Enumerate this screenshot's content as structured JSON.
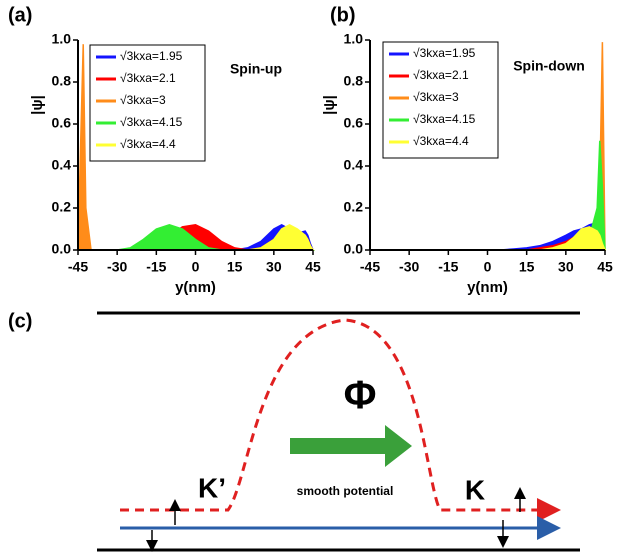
{
  "chart_data": [
    {
      "type": "area",
      "panel_label": "(a)",
      "annotation": "Spin-up",
      "xlabel": "y(nm)",
      "ylabel": "|ψ|",
      "x": [
        -45,
        -44,
        -43,
        -42,
        -40,
        -35,
        -30,
        -25,
        -20,
        -15,
        -10,
        -5,
        0,
        5,
        10,
        15,
        20,
        25,
        30,
        33,
        36,
        39,
        42,
        43,
        44,
        45
      ],
      "xlim": [
        -45,
        45
      ],
      "xticks": [
        -45,
        -30,
        -15,
        0,
        15,
        30,
        45
      ],
      "ylim": [
        0,
        1
      ],
      "yticks": [
        {
          "value": 0,
          "label": "0.0"
        },
        0.2,
        0.4,
        0.6,
        0.8,
        {
          "value": 1,
          "label": "1.0"
        }
      ],
      "series": [
        {
          "name": "√3kxa=1.95",
          "color": "#1414ff",
          "values": [
            0,
            0,
            0,
            0,
            0,
            0,
            0,
            0,
            0,
            0,
            0,
            0,
            0,
            0,
            0,
            0,
            0.01,
            0.04,
            0.1,
            0.12,
            0.1,
            0.08,
            0.09,
            0.07,
            0.03,
            0
          ]
        },
        {
          "name": "√3kxa=2.1",
          "color": "#ff0000",
          "values": [
            0,
            0,
            0,
            0,
            0,
            0,
            0,
            0,
            0,
            0.02,
            0.07,
            0.11,
            0.12,
            0.09,
            0.04,
            0.01,
            0,
            0.01,
            0.05,
            0.08,
            0.1,
            0.09,
            0.07,
            0.05,
            0.02,
            0
          ]
        },
        {
          "name": "√3kxa=3",
          "color": "#ff8c1a",
          "values": [
            0,
            0.5,
            0.98,
            0.2,
            0,
            0,
            0,
            0,
            0,
            0,
            0,
            0,
            0,
            0,
            0,
            0,
            0,
            0,
            0,
            0,
            0,
            0,
            0,
            0,
            0,
            0
          ]
        },
        {
          "name": "√3kxa=4.15",
          "color": "#33ee33",
          "values": [
            0,
            0,
            0,
            0,
            0,
            0,
            0,
            0.01,
            0.05,
            0.1,
            0.12,
            0.1,
            0.05,
            0.01,
            0,
            0,
            0,
            0,
            0.02,
            0.06,
            0.09,
            0.08,
            0.05,
            0.03,
            0.01,
            0
          ]
        },
        {
          "name": "√3kxa=4.4",
          "color": "#ffff33",
          "values": [
            0,
            0,
            0,
            0,
            0,
            0,
            0,
            0,
            0,
            0,
            0,
            0,
            0,
            0,
            0,
            0,
            0,
            0.01,
            0.05,
            0.1,
            0.12,
            0.1,
            0.07,
            0.05,
            0.02,
            0
          ]
        }
      ]
    },
    {
      "type": "area",
      "panel_label": "(b)",
      "annotation": "Spin-down",
      "xlabel": "y(nm)",
      "ylabel": "|ψ|",
      "x": [
        -45,
        -44,
        -43,
        -42,
        -40,
        -35,
        -30,
        -25,
        -20,
        -15,
        -10,
        -5,
        0,
        5,
        10,
        15,
        20,
        25,
        30,
        33,
        36,
        39,
        42,
        43,
        44,
        45
      ],
      "xlim": [
        -45,
        45
      ],
      "xticks": [
        -45,
        -30,
        -15,
        0,
        15,
        30,
        45
      ],
      "ylim": [
        0,
        1
      ],
      "yticks": [
        {
          "value": 0,
          "label": "0.0"
        },
        0.2,
        0.4,
        0.6,
        0.8,
        {
          "value": 1,
          "label": "1.0"
        }
      ],
      "series": [
        {
          "name": "√3kxa=1.95",
          "color": "#1414ff",
          "values": [
            0,
            0,
            0,
            0,
            0,
            0,
            0,
            0,
            0,
            0,
            0,
            0,
            0,
            0,
            0.005,
            0.01,
            0.02,
            0.04,
            0.07,
            0.09,
            0.1,
            0.12,
            0.13,
            0.1,
            0.05,
            0
          ]
        },
        {
          "name": "√3kxa=2.1",
          "color": "#ff0000",
          "values": [
            0,
            0,
            0,
            0,
            0,
            0,
            0,
            0,
            0,
            0,
            0,
            0,
            0,
            0,
            0,
            0,
            0.01,
            0.02,
            0.04,
            0.06,
            0.08,
            0.09,
            0.1,
            0.08,
            0.04,
            0
          ]
        },
        {
          "name": "√3kxa=3",
          "color": "#ff8c1a",
          "values": [
            0,
            0,
            0,
            0,
            0,
            0,
            0,
            0,
            0,
            0,
            0,
            0,
            0,
            0,
            0,
            0,
            0,
            0,
            0,
            0,
            0,
            0,
            0,
            0.3,
            0.99,
            0
          ]
        },
        {
          "name": "√3kxa=4.15",
          "color": "#33ee33",
          "values": [
            0,
            0,
            0,
            0,
            0,
            0,
            0,
            0,
            0,
            0,
            0,
            0,
            0,
            0,
            0,
            0,
            0,
            0,
            0,
            0,
            0.02,
            0.06,
            0.2,
            0.52,
            0.3,
            0
          ]
        },
        {
          "name": "√3kxa=4.4",
          "color": "#ffff33",
          "values": [
            0,
            0,
            0,
            0,
            0,
            0,
            0,
            0,
            0,
            0,
            0,
            0,
            0,
            0,
            0,
            0,
            0,
            0.01,
            0.03,
            0.06,
            0.1,
            0.11,
            0.09,
            0.07,
            0.03,
            0
          ]
        }
      ]
    }
  ],
  "diagram": {
    "panel_label": "(c)",
    "phi": "Φ",
    "arrow_label": "smooth potential",
    "k_prime": "K’",
    "k": "K"
  }
}
